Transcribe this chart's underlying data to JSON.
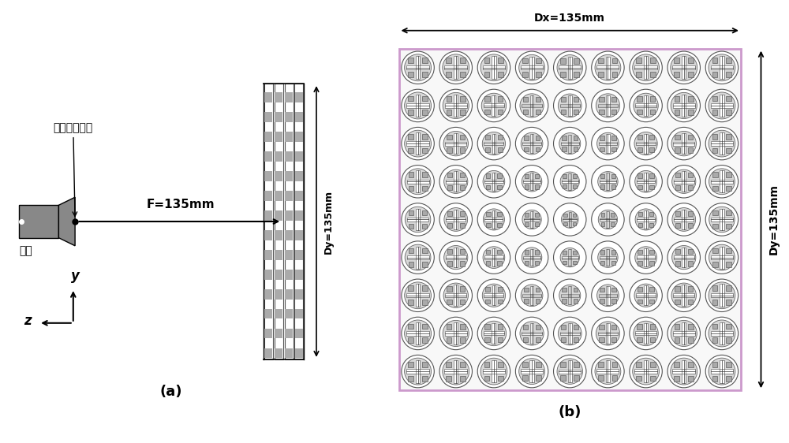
{
  "fig_width": 10.0,
  "fig_height": 5.62,
  "dpi": 100,
  "bg_color": "#ffffff",
  "panel_a_label": "(a)",
  "panel_b_label": "(b)",
  "text_phase_center": "等效相位中心",
  "text_feed_source": "馈源",
  "text_F": "F=135mm",
  "text_Dy_a": "Dy=135mm",
  "text_Dx_b": "Dx=135mm",
  "text_Dy_b": "Dy=135mm",
  "axis_y": "y",
  "axis_z": "z",
  "grid_rows": 9,
  "grid_cols": 9,
  "color_dark": "#000000",
  "color_gray": "#808080",
  "color_lightgray": "#cccccc",
  "color_dashes": "#aaaaaa",
  "color_border_b": "#ccaacc"
}
